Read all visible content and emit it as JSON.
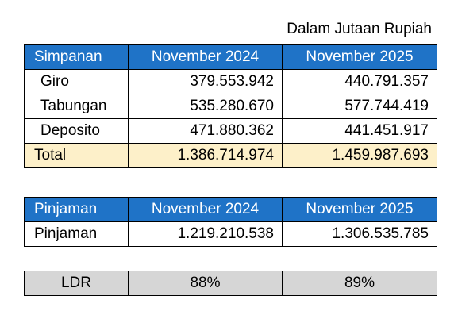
{
  "unit_note": "Dalam Jutaan Rupiah",
  "simpanan": {
    "headers": [
      "Simpanan",
      "November 2024",
      "November 2025"
    ],
    "rows": [
      {
        "label": "Giro",
        "v2024": "379.553.942",
        "v2025": "440.791.357"
      },
      {
        "label": "Tabungan",
        "v2024": "535.280.670",
        "v2025": "577.744.419"
      },
      {
        "label": "Deposito",
        "v2024": "471.880.362",
        "v2025": "441.451.917"
      }
    ],
    "total": {
      "label": "Total",
      "v2024": "1.386.714.974",
      "v2025": "1.459.987.693"
    }
  },
  "pinjaman": {
    "headers": [
      "Pinjaman",
      "November 2024",
      "November 2025"
    ],
    "rows": [
      {
        "label": "Pinjaman",
        "v2024": "1.219.210.538",
        "v2025": "1.306.535.785"
      }
    ]
  },
  "ldr": {
    "label": "LDR",
    "v2024": "88%",
    "v2025": "89%"
  },
  "colors": {
    "header_bg": "#1f73c7",
    "total_bg": "#fdf0c9",
    "ldr_bg": "#d6d6d6"
  }
}
